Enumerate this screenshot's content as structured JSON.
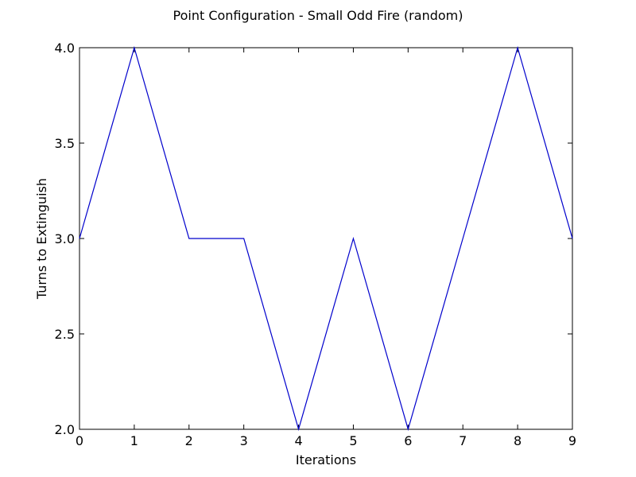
{
  "chart_data": {
    "type": "line",
    "title": "Point Configuration - Small Odd Fire (random)",
    "xlabel": "Iterations",
    "ylabel": "Turns to Extinguish",
    "xlim": [
      0,
      9
    ],
    "ylim": [
      2.0,
      4.0
    ],
    "x_ticks": [
      "0",
      "1",
      "2",
      "3",
      "4",
      "5",
      "6",
      "7",
      "8",
      "9"
    ],
    "y_ticks": [
      "2.0",
      "2.5",
      "3.0",
      "3.5",
      "4.0"
    ],
    "x_tick_values": [
      0,
      1,
      2,
      3,
      4,
      5,
      6,
      7,
      8,
      9
    ],
    "y_tick_values": [
      2.0,
      2.5,
      3.0,
      3.5,
      4.0
    ],
    "grid": false,
    "series": [
      {
        "color": "#0000cc",
        "x": [
          0,
          1,
          2,
          3,
          4,
          5,
          6,
          7,
          8,
          9
        ],
        "values": [
          3,
          4,
          3,
          3,
          2,
          3,
          2,
          3,
          4,
          3
        ]
      }
    ]
  }
}
